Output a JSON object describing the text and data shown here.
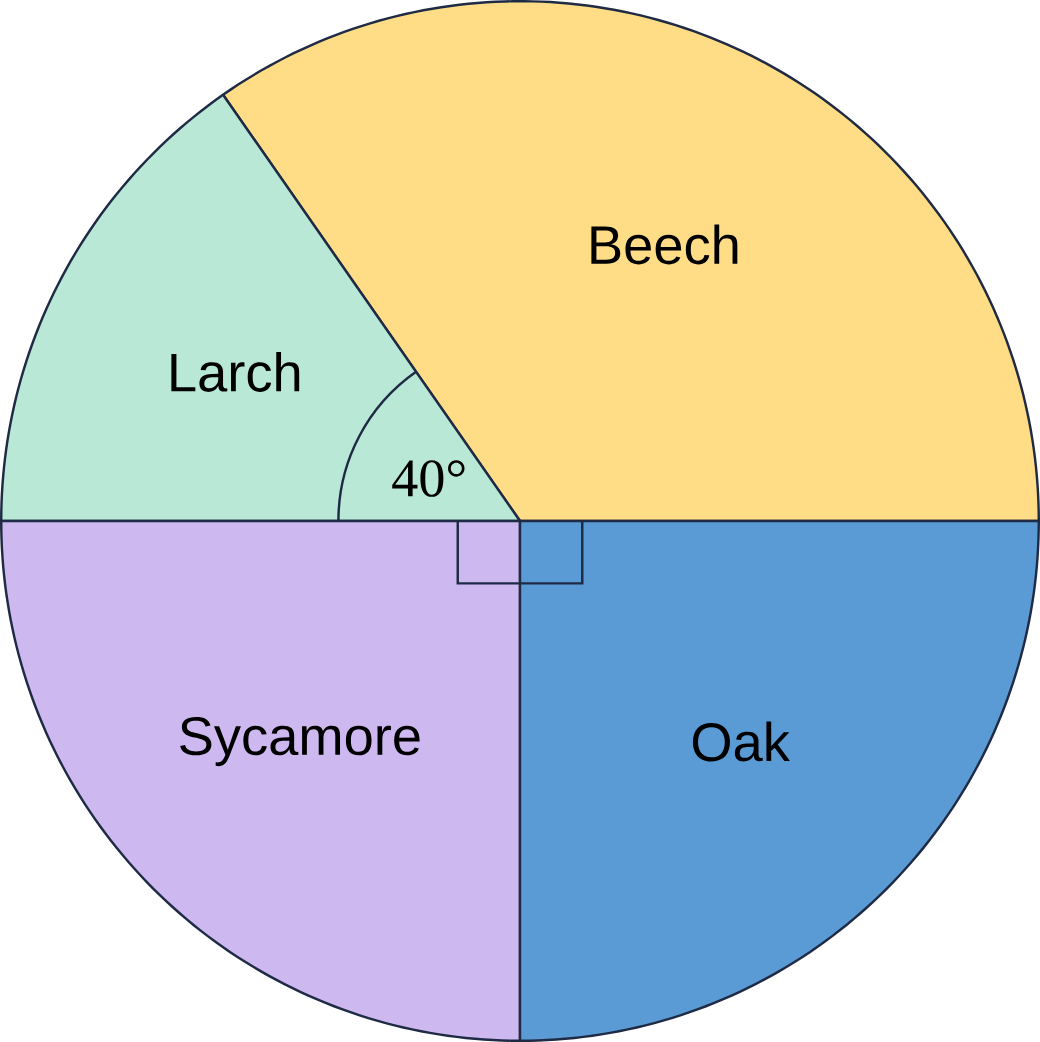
{
  "chart_data": {
    "type": "pie",
    "categories": [
      "Beech",
      "Larch",
      "Sycamore",
      "Oak"
    ],
    "values": [
      34.7,
      15.3,
      25,
      25
    ],
    "colors": [
      "#fedd86",
      "#b9e8d7",
      "#cdb8f0",
      "#5b9bd5"
    ],
    "annotations": [
      "40°"
    ]
  }
}
